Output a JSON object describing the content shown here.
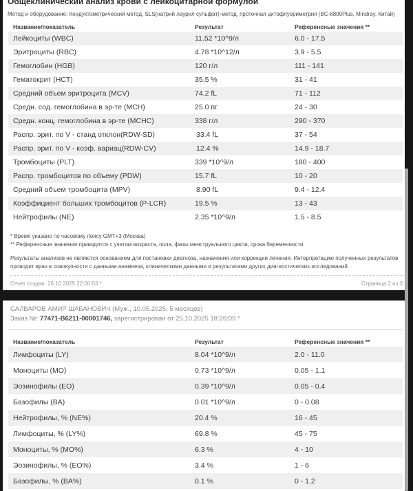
{
  "page1": {
    "title": "Общеклинический анализ крови с лейкоцитарной формулой",
    "method": "Метод и оборудование: Кондуктометрический метод, SLS(натрий лаурил сульфат)-метод, проточная цитофлуориметрия (BC-6800Plus, Mindray, Китай)",
    "columns": [
      "Название/показатель",
      "Результат",
      "Референсные значения **"
    ],
    "rows": [
      {
        "name": "Лейкоциты (WBC)",
        "flag": "",
        "result": "11.52 *10^9/л",
        "ref": "6.0 - 17.5"
      },
      {
        "name": "Эритроциты (RBC)",
        "flag": "",
        "result": "4.78 *10^12/л",
        "ref": "3.9 - 5.5"
      },
      {
        "name": "Гемоглобин (HGB)",
        "flag": "",
        "result": "120 г/л",
        "ref": "111 - 141"
      },
      {
        "name": "Гематокрит (HCT)",
        "flag": "",
        "result": "35.5 %",
        "ref": "31 - 41"
      },
      {
        "name": "Средний объем эритроцита (MCV)",
        "flag": "",
        "result": "74.2 fL",
        "ref": "71 - 112"
      },
      {
        "name": "Средн. сод. гемоглобина в эр-те (MCH)",
        "flag": "",
        "result": "25.0 пг",
        "ref": "24 - 30"
      },
      {
        "name": "Средн. конц. гемоглобина в эр-те (MCHC)",
        "flag": "",
        "result": "338 г/л",
        "ref": "290 - 370"
      },
      {
        "name": "Распр. эрит. по V - станд отклон(RDW-SD)",
        "flag": "↓",
        "result": "33.4 fL",
        "ref": "37 - 54"
      },
      {
        "name": "Распр. эрит. по V - коэф. вариац(RDW-CV)",
        "flag": "↓",
        "result": "12.4 %",
        "ref": "14.9 - 18.7"
      },
      {
        "name": "Тромбоциты (PLT)",
        "flag": "",
        "result": "339 *10^9/л",
        "ref": "180 - 400"
      },
      {
        "name": "Распр. тромбоцитов по объему (PDW)",
        "flag": "",
        "result": "15.7 fL",
        "ref": "10 - 20"
      },
      {
        "name": "Средний объем тромбоцита (MPV)",
        "flag": "↓",
        "result": "8.90 fL",
        "ref": "9.4 - 12.4"
      },
      {
        "name": "Коэффициент больших тромбоцитов (P-LCR)",
        "flag": "",
        "result": "19.5 %",
        "ref": "13 - 43"
      },
      {
        "name": "Нейтрофилы (NE)",
        "flag": "",
        "result": "2.35 *10^9/л",
        "ref": "1.5 - 8.5"
      }
    ],
    "footnote_time": "* Время указано по часовому поясу GMT+3 (Москва)",
    "footnote_ref": "** Референсные значения приводятся с учетом возраста, пола, фазы менструального цикла, срока беременности.",
    "disclaimer": "Результаты анализов не являются основанием для постановки диагноза, назначения или коррекции лечения. Интерпретацию полученных результатов проводит врач в совокупности с данными анамнеза, клиническими данными и результатами других диагностических исследований.",
    "footer_created": "Отчет создан: 26.10.2025 22:00:03 *",
    "footer_page": "Страница 2 из 3"
  },
  "page2": {
    "patient": "САЛВАРОВ АМИР ШАБАНОВИЧ (Муж., 10.05.2025, 5 месяцев)",
    "order_label": "Заказ №: ",
    "order_number": "77471-B6211-00001746,",
    "order_rest": " зарегистрирован от 25.10.2025 18:26:09 *",
    "columns": [
      "Название/показатель",
      "Результат",
      "Референсные значения **"
    ],
    "rows": [
      {
        "name": "Лимфоциты (LY)",
        "flag": "",
        "result": "8.04 *10^9/л",
        "ref": "2.0 - 11.0"
      },
      {
        "name": "Моноциты (MO)",
        "flag": "",
        "result": "0.73 *10^9/л",
        "ref": "0.05 - 1.1"
      },
      {
        "name": "Эозинофилы (EO)",
        "flag": "",
        "result": "0.39 *10^9/л",
        "ref": "0.05 - 0.4"
      },
      {
        "name": "Базофилы (BA)",
        "flag": "",
        "result": "0.01 *10^9/л",
        "ref": "0 - 0.08"
      },
      {
        "name": "Нейтрофилы, % (NE%)",
        "flag": "",
        "result": "20.4 %",
        "ref": "16 - 45"
      },
      {
        "name": "Лимфоциты, % (LY%)",
        "flag": "",
        "result": "69.8 %",
        "ref": "45 - 75"
      },
      {
        "name": "Моноциты, % (MO%)",
        "flag": "",
        "result": "6.3 %",
        "ref": "4 - 10"
      },
      {
        "name": "Эозинофилы, % (EO%)",
        "flag": "",
        "result": "3.4 %",
        "ref": "1 - 6"
      },
      {
        "name": "Базофилы, % (BA%)",
        "flag": "",
        "result": "0.1 %",
        "ref": "0 - 1.2"
      }
    ]
  },
  "icons": {
    "low_value_arrow": "↓"
  },
  "colors": {
    "row_stripe": "#efefef",
    "frame_background": "#171717",
    "page_background": "#ffffff",
    "text_primary": "#3a3a3a",
    "text_muted": "#8a8a8a",
    "scrollbar_thumb": "#a6a6a6"
  }
}
